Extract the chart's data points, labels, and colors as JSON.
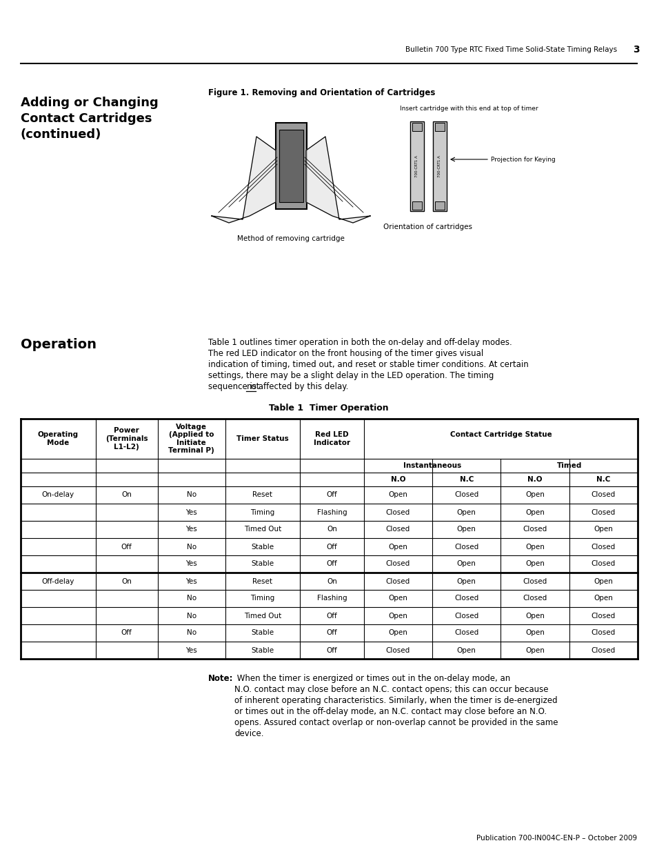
{
  "page_header_text": "Bulletin 700 Type RTC Fixed Time Solid-State Timing Relays",
  "page_number": "3",
  "section_title": "Adding or Changing\nContact Cartridges\n(continued)",
  "figure_title": "Figure 1. Removing and Orientation of Cartridges",
  "fig_caption_left": "Method of removing cartridge",
  "fig_caption_right": "Orientation of cartridges",
  "fig_label_top": "Insert cartridge with this end at top of timer",
  "fig_label_right": "Projection for Keying",
  "section2_title": "Operation",
  "operation_lines": [
    {
      "text": "Table 1 outlines timer operation in both the on-delay and off-delay modes.",
      "underline_word": ""
    },
    {
      "text": "The red LED indicator on the front housing of the timer gives visual",
      "underline_word": ""
    },
    {
      "text": "indication of timing, timed out, and reset or stable timer conditions. At certain",
      "underline_word": ""
    },
    {
      "text": "settings, there may be a slight delay in the LED operation. The timing",
      "underline_word": ""
    },
    {
      "text": "sequence is not affected by this delay.",
      "underline_word": "not"
    }
  ],
  "table_title": "Table 1  Timer Operation",
  "table_data": [
    [
      "On-delay",
      "On",
      "No",
      "Reset",
      "Off",
      "Open",
      "Closed",
      "Open",
      "Closed"
    ],
    [
      "",
      "",
      "Yes",
      "Timing",
      "Flashing",
      "Closed",
      "Open",
      "Open",
      "Closed"
    ],
    [
      "",
      "",
      "Yes",
      "Timed Out",
      "On",
      "Closed",
      "Open",
      "Closed",
      "Open"
    ],
    [
      "",
      "Off",
      "No",
      "Stable",
      "Off",
      "Open",
      "Closed",
      "Open",
      "Closed"
    ],
    [
      "",
      "",
      "Yes",
      "Stable",
      "Off",
      "Closed",
      "Open",
      "Open",
      "Closed"
    ],
    [
      "Off-delay",
      "On",
      "Yes",
      "Reset",
      "On",
      "Closed",
      "Open",
      "Closed",
      "Open"
    ],
    [
      "",
      "",
      "No",
      "Timing",
      "Flashing",
      "Open",
      "Closed",
      "Closed",
      "Open"
    ],
    [
      "",
      "",
      "No",
      "Timed Out",
      "Off",
      "Open",
      "Closed",
      "Open",
      "Closed"
    ],
    [
      "",
      "Off",
      "No",
      "Stable",
      "Off",
      "Open",
      "Closed",
      "Open",
      "Closed"
    ],
    [
      "",
      "",
      "Yes",
      "Stable",
      "Off",
      "Closed",
      "Open",
      "Open",
      "Closed"
    ]
  ],
  "note_bold": "Note:",
  "note_text": " When the timer is energized or times out in the on-delay mode, an\nN.O. contact may close before an N.C. contact opens; this can occur because\nof inherent operating characteristics. Similarly, when the timer is de-energized\nor times out in the off-delay mode, an N.C. contact may close before an N.O.\nopens. Assured contact overlap or non-overlap cannot be provided in the same\ndevice.",
  "footer_text": "Publication 700-IN004C-EN-P – October 2009",
  "background_color": "#ffffff"
}
